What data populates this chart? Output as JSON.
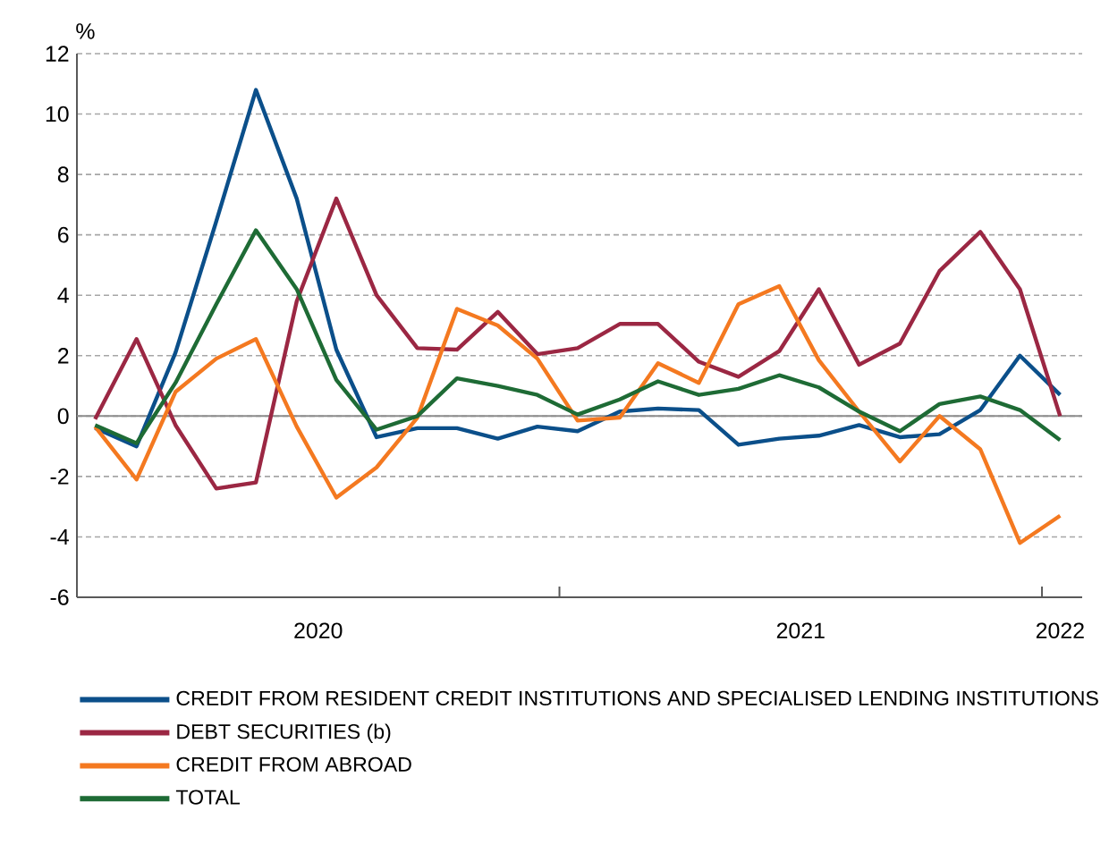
{
  "chart_data": {
    "type": "line",
    "ylabel": "%",
    "x": [
      "2020-01-15",
      "2020-02-15",
      "2020-03-15",
      "2020-04-15",
      "2020-05-15",
      "2020-06-15",
      "2020-07-15",
      "2020-08-15",
      "2020-09-15",
      "2020-10-15",
      "2020-11-15",
      "2020-12-15",
      "2021-01-15",
      "2021-02-15",
      "2021-03-15",
      "2021-04-15",
      "2021-05-15",
      "2021-06-15",
      "2021-07-15",
      "2021-08-15",
      "2021-09-15",
      "2021-10-15",
      "2021-11-15",
      "2021-12-15",
      "2022-01-15"
    ],
    "xlim": [
      "2020-01-01",
      "2022-02-01"
    ],
    "xticks": [
      {
        "value": "2020-07-01",
        "label": "2020"
      },
      {
        "value": "2021-01-01",
        "label": null
      },
      {
        "value": "2021-07-01",
        "label": "2021"
      },
      {
        "value": "2022-01-01",
        "label": null
      },
      {
        "value": "2022-01-15",
        "label": "2022"
      }
    ],
    "ylim": [
      -6,
      12
    ],
    "yticks": [
      -6,
      -4,
      -2,
      0,
      2,
      4,
      6,
      8,
      10,
      12
    ],
    "grid": "y",
    "legend": "bottom",
    "ref_lines": [
      {
        "axis": "y",
        "value": 0,
        "color": "#8c8c8c"
      }
    ],
    "series": [
      {
        "name": "CREDIT FROM RESIDENT CREDIT INSTITUTIONS AND SPECIALISED LENDING INSTITUTIONS",
        "color": "#0b4f8a",
        "values": [
          -0.4,
          -1.0,
          2.1,
          6.45,
          10.8,
          7.2,
          2.2,
          -0.7,
          -0.4,
          -0.4,
          -0.75,
          -0.35,
          -0.5,
          0.15,
          0.25,
          0.2,
          -0.95,
          -0.75,
          -0.65,
          -0.3,
          -0.7,
          -0.6,
          0.2,
          2.0,
          0.7
        ]
      },
      {
        "name": "DEBT SECURITIES (b)",
        "color": "#9b2743",
        "values": [
          -0.1,
          2.55,
          -0.3,
          -2.4,
          -2.2,
          3.8,
          7.2,
          4.0,
          2.25,
          2.2,
          3.45,
          2.05,
          2.25,
          3.05,
          3.05,
          1.8,
          1.3,
          2.15,
          4.2,
          1.7,
          2.4,
          4.8,
          6.1,
          4.2,
          0.0
        ]
      },
      {
        "name": "CREDIT FROM ABROAD",
        "color": "#f47920",
        "values": [
          -0.35,
          -2.1,
          0.8,
          1.9,
          2.55,
          -0.35,
          -2.7,
          -1.7,
          -0.05,
          3.55,
          3.0,
          1.9,
          -0.15,
          -0.05,
          1.75,
          1.1,
          3.7,
          4.3,
          1.85,
          0.15,
          -1.5,
          0.0,
          -1.1,
          -4.2,
          -3.3
        ]
      },
      {
        "name": "TOTAL",
        "color": "#1e6b35",
        "values": [
          -0.3,
          -0.9,
          1.1,
          3.7,
          6.15,
          4.2,
          1.2,
          -0.45,
          0.0,
          1.25,
          1.0,
          0.7,
          0.05,
          0.55,
          1.15,
          0.7,
          0.9,
          1.35,
          0.95,
          0.15,
          -0.5,
          0.4,
          0.65,
          0.2,
          -0.8
        ]
      }
    ]
  }
}
